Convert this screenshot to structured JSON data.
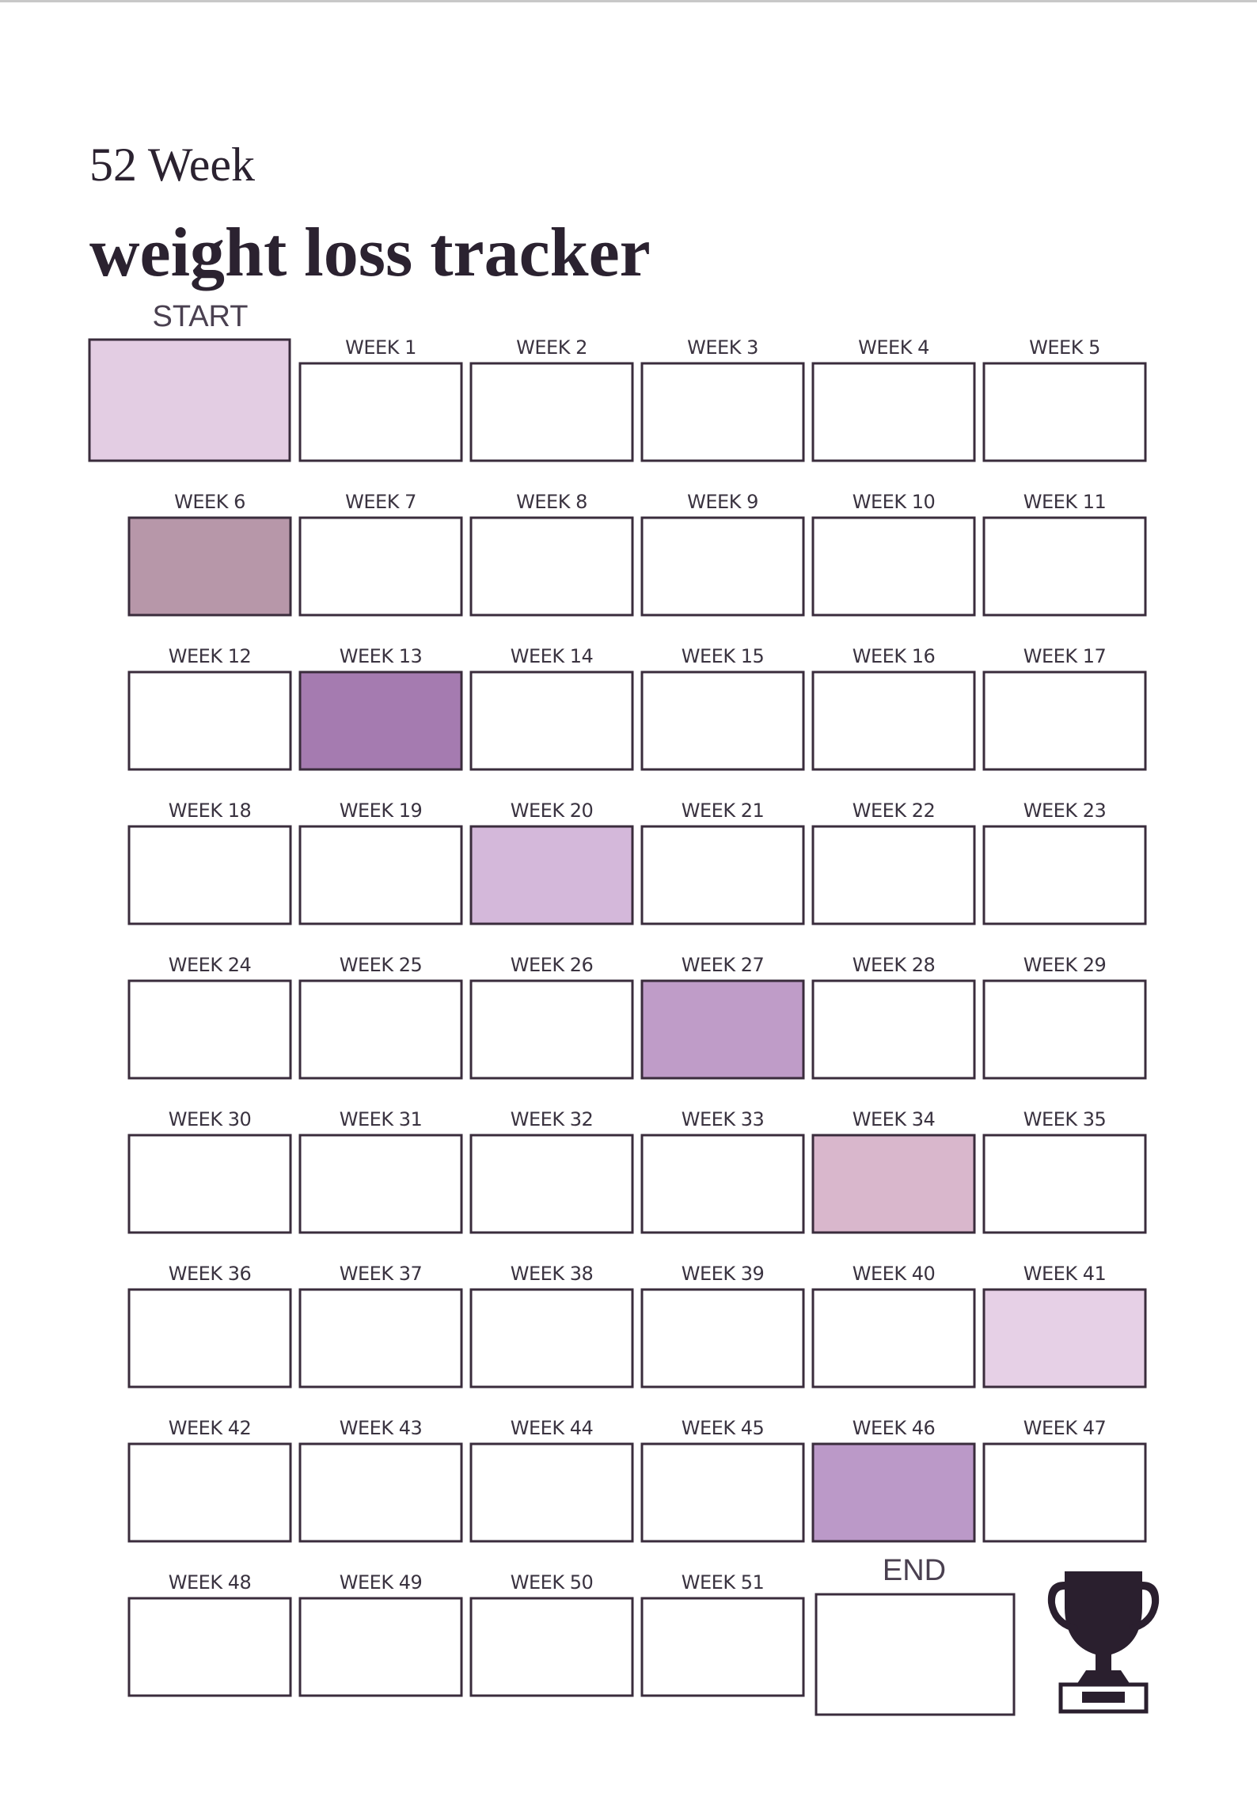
{
  "header": {
    "subtitle": "52 Week",
    "title": "weight loss tracker"
  },
  "start": {
    "label": "START",
    "color": "#e3cde3"
  },
  "weeks": [
    {
      "label": "WEEK 1"
    },
    {
      "label": "WEEK 2"
    },
    {
      "label": "WEEK 3"
    },
    {
      "label": "WEEK 4"
    },
    {
      "label": "WEEK 5"
    },
    {
      "label": "WEEK 6",
      "color": "#b797a9"
    },
    {
      "label": "WEEK 7"
    },
    {
      "label": "WEEK 8"
    },
    {
      "label": "WEEK 9"
    },
    {
      "label": "WEEK 10"
    },
    {
      "label": "WEEK 11"
    },
    {
      "label": "WEEK 12"
    },
    {
      "label": "WEEK 13",
      "color": "#a57bb0"
    },
    {
      "label": "WEEK 14"
    },
    {
      "label": "WEEK 15"
    },
    {
      "label": "WEEK 16"
    },
    {
      "label": "WEEK 17"
    },
    {
      "label": "WEEK 18"
    },
    {
      "label": "WEEK 19"
    },
    {
      "label": "WEEK 20",
      "color": "#d4b8da"
    },
    {
      "label": "WEEK 21"
    },
    {
      "label": "WEEK 22"
    },
    {
      "label": "WEEK 23"
    },
    {
      "label": "WEEK 24"
    },
    {
      "label": "WEEK 25"
    },
    {
      "label": "WEEK 26"
    },
    {
      "label": "WEEK 27",
      "color": "#bf9cc8"
    },
    {
      "label": "WEEK 28"
    },
    {
      "label": "WEEK 29"
    },
    {
      "label": "WEEK 30"
    },
    {
      "label": "WEEK 31"
    },
    {
      "label": "WEEK 32"
    },
    {
      "label": "WEEK 33"
    },
    {
      "label": "WEEK 34",
      "color": "#d9b7cc"
    },
    {
      "label": "WEEK 35"
    },
    {
      "label": "WEEK 36"
    },
    {
      "label": "WEEK 37"
    },
    {
      "label": "WEEK 38"
    },
    {
      "label": "WEEK 39"
    },
    {
      "label": "WEEK 40"
    },
    {
      "label": "WEEK 41",
      "color": "#e6d0e6"
    },
    {
      "label": "WEEK 42"
    },
    {
      "label": "WEEK 43"
    },
    {
      "label": "WEEK 44"
    },
    {
      "label": "WEEK 45"
    },
    {
      "label": "WEEK 46",
      "color": "#bb99c8"
    },
    {
      "label": "WEEK 47"
    },
    {
      "label": "WEEK 48"
    },
    {
      "label": "WEEK 49"
    },
    {
      "label": "WEEK 50"
    },
    {
      "label": "WEEK 51"
    }
  ],
  "end": {
    "label": "END"
  }
}
